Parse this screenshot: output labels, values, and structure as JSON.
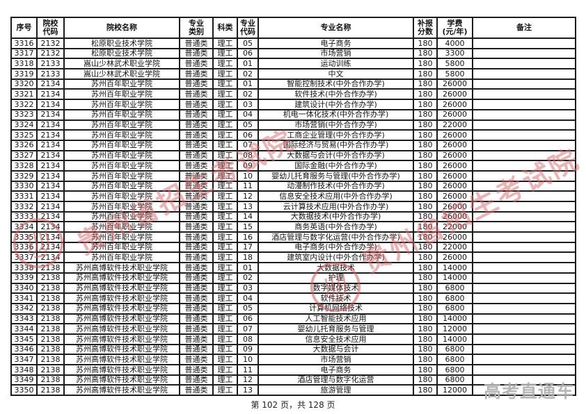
{
  "page": {
    "footer": "第 102 页，共 128 页"
  },
  "table": {
    "headers": [
      "序号",
      "院校\n代码",
      "院校名称",
      "专业\n类别",
      "科类",
      "专业\n代码",
      "专业名称",
      "补报\n分数",
      "学费\n(元/年)",
      "备注"
    ],
    "rows": [
      [
        "3316",
        "2132",
        "松原职业技术学院",
        "普通类",
        "理工",
        "05",
        "电子商务",
        "180",
        "4000",
        ""
      ],
      [
        "3317",
        "2132",
        "松原职业技术学院",
        "普通类",
        "理工",
        "06",
        "市场营销",
        "180",
        "3300",
        ""
      ],
      [
        "3318",
        "2133",
        "嵩山少林武术职业学院",
        "普通类",
        "理工",
        "01",
        "运动训练",
        "180",
        "5800",
        ""
      ],
      [
        "3319",
        "2133",
        "嵩山少林武术职业学院",
        "普通类",
        "理工",
        "02",
        "中文",
        "180",
        "5800",
        ""
      ],
      [
        "3320",
        "2134",
        "苏州百年职业学院",
        "普通类",
        "理工",
        "01",
        "智能控制技术(中外合作办学)",
        "180",
        "26000",
        ""
      ],
      [
        "3321",
        "2134",
        "苏州百年职业学院",
        "普通类",
        "理工",
        "02",
        "软件技术(中外合作办学)",
        "180",
        "26000",
        ""
      ],
      [
        "3322",
        "2134",
        "苏州百年职业学院",
        "普通类",
        "理工",
        "03",
        "建筑设计(中外合作办学)",
        "180",
        "26000",
        ""
      ],
      [
        "3323",
        "2134",
        "苏州百年职业学院",
        "普通类",
        "理工",
        "04",
        "机电一体化技术(中外合作办学)",
        "180",
        "26000",
        ""
      ],
      [
        "3324",
        "2134",
        "苏州百年职业学院",
        "普通类",
        "理工",
        "05",
        "市场营销(中外合作办学)",
        "180",
        "22000",
        ""
      ],
      [
        "3325",
        "2134",
        "苏州百年职业学院",
        "普通类",
        "理工",
        "06",
        "工商企业管理(中外合作办学)",
        "180",
        "26000",
        ""
      ],
      [
        "3326",
        "2134",
        "苏州百年职业学院",
        "普通类",
        "理工",
        "07",
        "国际经济与贸易(中外合作办学)",
        "180",
        "26000",
        ""
      ],
      [
        "3327",
        "2134",
        "苏州百年职业学院",
        "普通类",
        "理工",
        "08",
        "大数据与会计(中外合作办学)",
        "180",
        "26000",
        ""
      ],
      [
        "3328",
        "2134",
        "苏州百年职业学院",
        "普通类",
        "理工",
        "09",
        "国际金融(中外合作办学)",
        "180",
        "26000",
        ""
      ],
      [
        "3329",
        "2134",
        "苏州百年职业学院",
        "普通类",
        "理工",
        "10",
        "婴幼儿托育服务与管理(中外合作办学)",
        "180",
        "26000",
        ""
      ],
      [
        "3330",
        "2134",
        "苏州百年职业学院",
        "普通类",
        "理工",
        "11",
        "动漫制作技术(中外合作办学)",
        "180",
        "26000",
        ""
      ],
      [
        "3331",
        "2134",
        "苏州百年职业学院",
        "普通类",
        "理工",
        "12",
        "信息安全技术应用(中外合作办学)",
        "180",
        "26000",
        ""
      ],
      [
        "3332",
        "2134",
        "苏州百年职业学院",
        "普通类",
        "理工",
        "13",
        "云计算技术应用(中外合作办学)",
        "180",
        "26000",
        ""
      ],
      [
        "3333",
        "2134",
        "苏州百年职业学院",
        "普通类",
        "理工",
        "14",
        "大数据技术(中外合作办学)",
        "180",
        "26000",
        ""
      ],
      [
        "3334",
        "2134",
        "苏州百年职业学院",
        "普通类",
        "理工",
        "15",
        "商务英语(中外合作办学)",
        "180",
        "22000",
        ""
      ],
      [
        "3335",
        "2134",
        "苏州百年职业学院",
        "普通类",
        "理工",
        "16",
        "酒店管理与数字化运营(中外合作办学)",
        "180",
        "26000",
        ""
      ],
      [
        "3336",
        "2134",
        "苏州百年职业学院",
        "普通类",
        "理工",
        "17",
        "电子商务(中外合作办学)",
        "180",
        "22000",
        ""
      ],
      [
        "3337",
        "2134",
        "苏州百年职业学院",
        "普通类",
        "理工",
        "18",
        "建筑室内设计(中外合作办学)",
        "180",
        "26000",
        ""
      ],
      [
        "3338",
        "2138",
        "苏州高博软件技术职业学院",
        "普通类",
        "理工",
        "01",
        "大数据技术",
        "180",
        "14000",
        ""
      ],
      [
        "3339",
        "2138",
        "苏州高博软件技术职业学院",
        "普通类",
        "理工",
        "02",
        "护理",
        "180",
        "14000",
        ""
      ],
      [
        "3340",
        "2138",
        "苏州高博软件技术职业学院",
        "普通类",
        "理工",
        "03",
        "数字媒体技术",
        "180",
        "6800",
        ""
      ],
      [
        "3341",
        "2138",
        "苏州高博软件技术职业学院",
        "普通类",
        "理工",
        "04",
        "软件技术",
        "180",
        "6800",
        ""
      ],
      [
        "3342",
        "2138",
        "苏州高博软件技术职业学院",
        "普通类",
        "理工",
        "05",
        "计算机网络技术",
        "180",
        "6800",
        ""
      ],
      [
        "3343",
        "2138",
        "苏州高博软件技术职业学院",
        "普通类",
        "理工",
        "06",
        "人工智能技术应用",
        "180",
        "14000",
        ""
      ],
      [
        "3344",
        "2138",
        "苏州高博软件技术职业学院",
        "普通类",
        "理工",
        "07",
        "婴幼儿托育服务与管理",
        "180",
        "12000",
        ""
      ],
      [
        "3345",
        "2138",
        "苏州高博软件技术职业学院",
        "普通类",
        "理工",
        "08",
        "信息安全技术应用",
        "180",
        "14000",
        ""
      ],
      [
        "3346",
        "2138",
        "苏州高博软件技术职业学院",
        "普通类",
        "理工",
        "09",
        "大数据与会计",
        "180",
        "6800",
        ""
      ],
      [
        "3347",
        "2138",
        "苏州高博软件技术职业学院",
        "普通类",
        "理工",
        "10",
        "市场营销",
        "180",
        "6800",
        ""
      ],
      [
        "3348",
        "2138",
        "苏州高博软件技术职业学院",
        "普通类",
        "理工",
        "11",
        "电子商务",
        "180",
        "6800",
        ""
      ],
      [
        "3349",
        "2138",
        "苏州高博软件技术职业学院",
        "普通类",
        "理工",
        "12",
        "酒店管理与数字化运营",
        "180",
        "6800",
        ""
      ],
      [
        "3350",
        "2138",
        "苏州高博软件技术职业学院",
        "普通类",
        "理工",
        "13",
        "旅游管理",
        "180",
        "12000",
        ""
      ]
    ]
  },
  "watermarks": {
    "diagonal_text": "贵州省招生考试院",
    "diagonal_color": "#d96a6a",
    "seal_color": "#d05a5a",
    "bottom_right_text": "高考直通车",
    "bottom_right_color": "#b0b0b0"
  }
}
